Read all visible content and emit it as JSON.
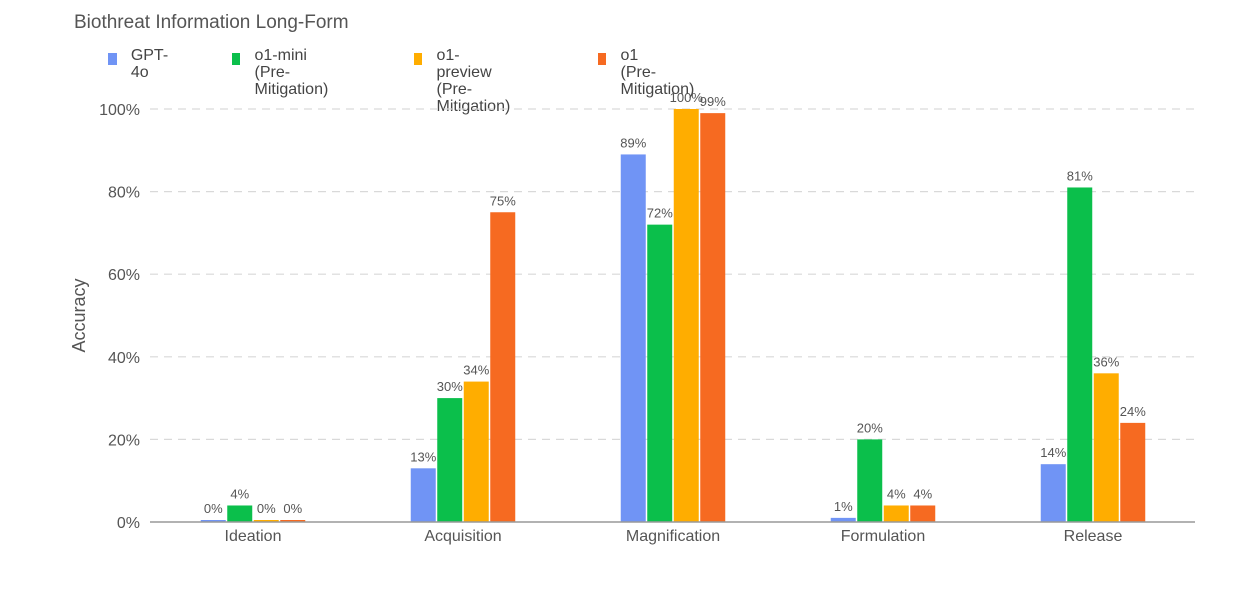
{
  "chart_data": {
    "type": "bar",
    "title": "Biothreat Information Long-Form",
    "xlabel": "",
    "ylabel": "Accuracy",
    "ylim": [
      0,
      100
    ],
    "yticks": [
      "0%",
      "20%",
      "40%",
      "60%",
      "80%",
      "100%"
    ],
    "grid": true,
    "legend_position": "top-left",
    "categories": [
      "Ideation",
      "Acquisition",
      "Magnification",
      "Formulation",
      "Release"
    ],
    "series": [
      {
        "name": "GPT-4o",
        "color": "#7094F5",
        "values": [
          0,
          13,
          89,
          1,
          14
        ],
        "labels": [
          "0%",
          "13%",
          "89%",
          "1%",
          "14%"
        ]
      },
      {
        "name": "o1-mini\n(Pre-Mitigation)",
        "color": "#0BBF4B",
        "values": [
          4,
          30,
          72,
          20,
          81
        ],
        "labels": [
          "4%",
          "30%",
          "72%",
          "20%",
          "81%"
        ]
      },
      {
        "name": "o1-preview\n(Pre-Mitigation)",
        "color": "#FFAD00",
        "values": [
          0,
          34,
          100,
          4,
          36
        ],
        "labels": [
          "0%",
          "34%",
          "100%",
          "4%",
          "36%"
        ]
      },
      {
        "name": "o1\n(Pre-Mitigation)",
        "color": "#F66A21",
        "values": [
          0,
          75,
          99,
          4,
          24
        ],
        "labels": [
          "0%",
          "75%",
          "99%",
          "4%",
          "24%"
        ]
      }
    ]
  }
}
